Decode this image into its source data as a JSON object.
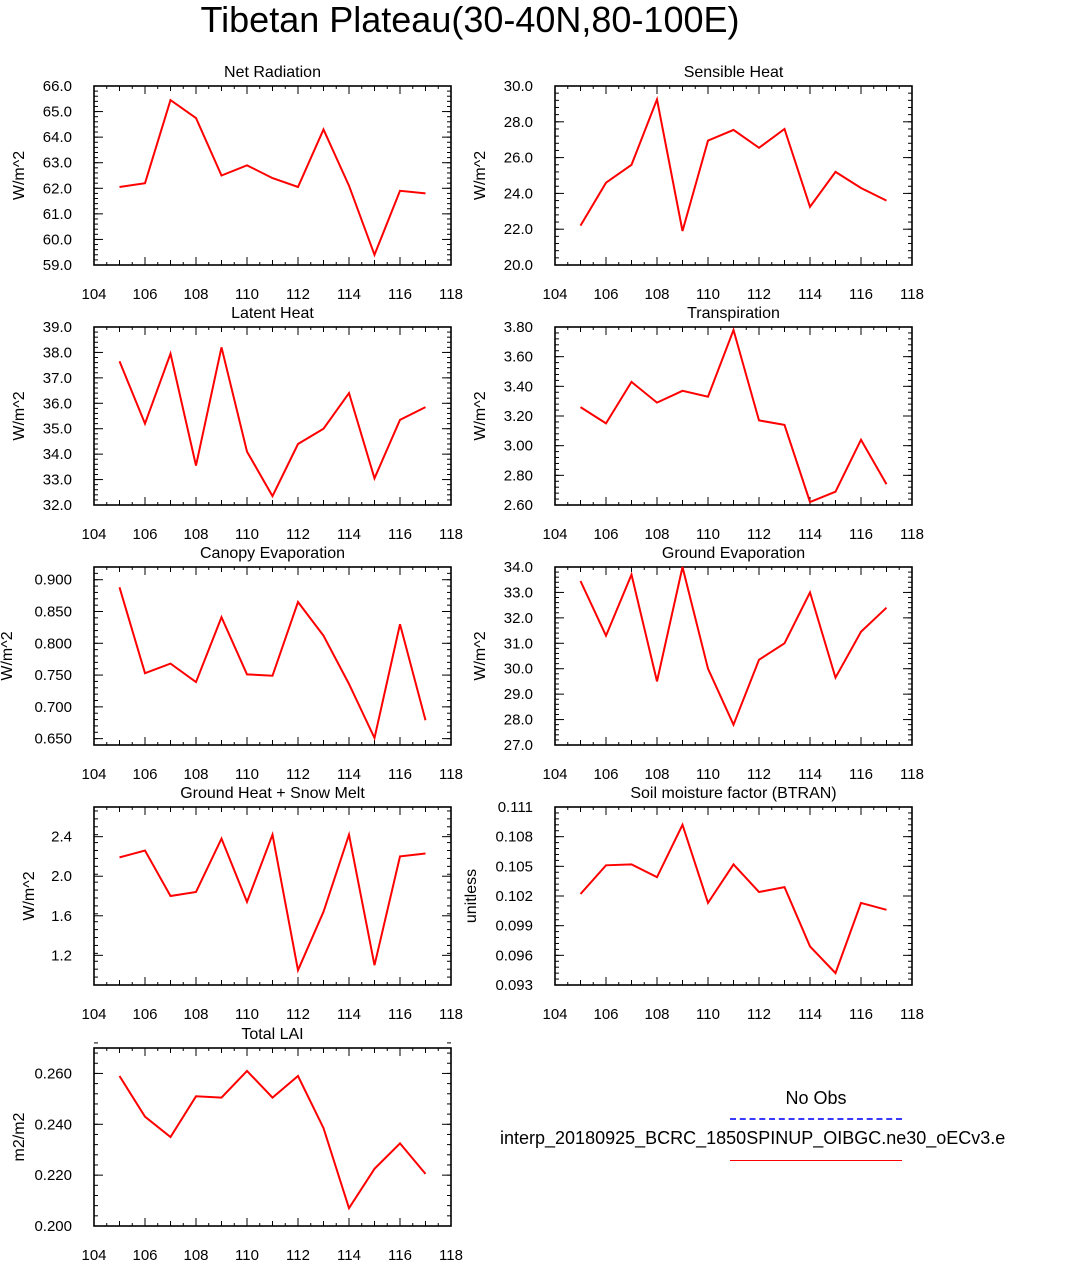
{
  "title": "Tibetan Plateau(30-40N,80-100E)",
  "line_color": "#ff0000",
  "obs_color": "#3a3aff",
  "legend": {
    "obs_label": "No Obs",
    "model_label": "interp_20180925_BCRC_1850SPINUP_OIBGC.ne30_oECv3.e"
  },
  "chart_data": [
    {
      "type": "line",
      "title": "Net Radiation",
      "xlabel": "",
      "ylabel": "W/m^2",
      "xlim": [
        104,
        118
      ],
      "ylim": [
        59.0,
        66.0
      ],
      "grid": false,
      "x_ticks": [
        104,
        106,
        108,
        110,
        112,
        114,
        116,
        118
      ],
      "y_ticks": [
        59.0,
        60.0,
        61.0,
        62.0,
        63.0,
        64.0,
        65.0,
        66.0
      ],
      "y_decimals": 1,
      "x": [
        105,
        106,
        107,
        108,
        109,
        110,
        111,
        112,
        113,
        114,
        115,
        116,
        117
      ],
      "series": [
        {
          "values": [
            62.05,
            62.2,
            65.45,
            64.75,
            62.5,
            62.9,
            62.4,
            62.05,
            64.3,
            62.1,
            59.4,
            61.9,
            61.8
          ]
        }
      ]
    },
    {
      "type": "line",
      "title": "Sensible Heat",
      "xlabel": "",
      "ylabel": "W/m^2",
      "xlim": [
        104,
        118
      ],
      "ylim": [
        20.0,
        30.0
      ],
      "grid": false,
      "x_ticks": [
        104,
        106,
        108,
        110,
        112,
        114,
        116,
        118
      ],
      "y_ticks": [
        20.0,
        22.0,
        24.0,
        26.0,
        28.0,
        30.0
      ],
      "y_decimals": 1,
      "x": [
        105,
        106,
        107,
        108,
        109,
        110,
        111,
        112,
        113,
        114,
        115,
        116,
        117
      ],
      "series": [
        {
          "values": [
            22.2,
            24.6,
            25.6,
            29.25,
            21.9,
            26.95,
            27.55,
            26.55,
            27.6,
            23.25,
            25.2,
            24.3,
            23.6
          ]
        }
      ]
    },
    {
      "type": "line",
      "title": "Latent Heat",
      "xlabel": "",
      "ylabel": "W/m^2",
      "xlim": [
        104,
        118
      ],
      "ylim": [
        32.0,
        39.0
      ],
      "grid": false,
      "x_ticks": [
        104,
        106,
        108,
        110,
        112,
        114,
        116,
        118
      ],
      "y_ticks": [
        32.0,
        33.0,
        34.0,
        35.0,
        36.0,
        37.0,
        38.0,
        39.0
      ],
      "y_decimals": 1,
      "x": [
        105,
        106,
        107,
        108,
        109,
        110,
        111,
        112,
        113,
        114,
        115,
        116,
        117
      ],
      "series": [
        {
          "values": [
            37.65,
            35.2,
            37.95,
            33.55,
            38.2,
            34.1,
            32.35,
            34.4,
            35.0,
            36.4,
            33.05,
            35.35,
            35.85
          ]
        }
      ]
    },
    {
      "type": "line",
      "title": "Transpiration",
      "xlabel": "",
      "ylabel": "W/m^2",
      "xlim": [
        104,
        118
      ],
      "ylim": [
        2.6,
        3.8
      ],
      "grid": false,
      "x_ticks": [
        104,
        106,
        108,
        110,
        112,
        114,
        116,
        118
      ],
      "y_ticks": [
        2.6,
        2.8,
        3.0,
        3.2,
        3.4,
        3.6,
        3.8
      ],
      "y_decimals": 2,
      "x": [
        105,
        106,
        107,
        108,
        109,
        110,
        111,
        112,
        113,
        114,
        115,
        116,
        117
      ],
      "series": [
        {
          "values": [
            3.26,
            3.15,
            3.43,
            3.29,
            3.37,
            3.33,
            3.78,
            3.17,
            3.14,
            2.62,
            2.69,
            3.04,
            2.74
          ]
        }
      ]
    },
    {
      "type": "line",
      "title": "Canopy Evaporation",
      "xlabel": "",
      "ylabel": "W/m^2",
      "xlim": [
        104,
        118
      ],
      "ylim": [
        0.64,
        0.92
      ],
      "grid": false,
      "x_ticks": [
        104,
        106,
        108,
        110,
        112,
        114,
        116,
        118
      ],
      "y_ticks": [
        0.65,
        0.7,
        0.75,
        0.8,
        0.85,
        0.9
      ],
      "y_decimals": 3,
      "x": [
        105,
        106,
        107,
        108,
        109,
        110,
        111,
        112,
        113,
        114,
        115,
        116,
        117
      ],
      "series": [
        {
          "values": [
            0.888,
            0.753,
            0.768,
            0.739,
            0.841,
            0.751,
            0.749,
            0.865,
            0.812,
            0.736,
            0.651,
            0.83,
            0.679
          ]
        }
      ]
    },
    {
      "type": "line",
      "title": "Ground Evaporation",
      "xlabel": "",
      "ylabel": "W/m^2",
      "xlim": [
        104,
        118
      ],
      "ylim": [
        27.0,
        34.0
      ],
      "grid": false,
      "x_ticks": [
        104,
        106,
        108,
        110,
        112,
        114,
        116,
        118
      ],
      "y_ticks": [
        27.0,
        28.0,
        29.0,
        30.0,
        31.0,
        32.0,
        33.0,
        34.0
      ],
      "y_decimals": 1,
      "x": [
        105,
        106,
        107,
        108,
        109,
        110,
        111,
        112,
        113,
        114,
        115,
        116,
        117
      ],
      "series": [
        {
          "values": [
            33.45,
            31.3,
            33.7,
            29.5,
            34.0,
            30.0,
            27.8,
            30.35,
            31.0,
            33.0,
            29.65,
            31.45,
            32.4
          ]
        }
      ]
    },
    {
      "type": "line",
      "title": "Ground Heat + Snow Melt",
      "xlabel": "",
      "ylabel": "W/m^2",
      "xlim": [
        104,
        118
      ],
      "ylim": [
        0.9,
        2.7
      ],
      "grid": false,
      "x_ticks": [
        104,
        106,
        108,
        110,
        112,
        114,
        116,
        118
      ],
      "y_ticks": [
        1.2,
        1.6,
        2.0,
        2.4
      ],
      "y_decimals": 1,
      "x": [
        105,
        106,
        107,
        108,
        109,
        110,
        111,
        112,
        113,
        114,
        115,
        116,
        117
      ],
      "series": [
        {
          "values": [
            2.19,
            2.26,
            1.8,
            1.84,
            2.38,
            1.74,
            2.42,
            1.05,
            1.64,
            2.42,
            1.1,
            2.2,
            2.23
          ]
        }
      ]
    },
    {
      "type": "line",
      "title": "Soil moisture factor (BTRAN)",
      "xlabel": "",
      "ylabel": "unitless",
      "xlim": [
        104,
        118
      ],
      "ylim": [
        0.093,
        0.111
      ],
      "grid": false,
      "x_ticks": [
        104,
        106,
        108,
        110,
        112,
        114,
        116,
        118
      ],
      "y_ticks": [
        0.093,
        0.096,
        0.099,
        0.102,
        0.105,
        0.108,
        0.111
      ],
      "y_decimals": 3,
      "x": [
        105,
        106,
        107,
        108,
        109,
        110,
        111,
        112,
        113,
        114,
        115,
        116,
        117
      ],
      "series": [
        {
          "values": [
            0.1022,
            0.1051,
            0.1052,
            0.1039,
            0.1092,
            0.1013,
            0.1052,
            0.1024,
            0.1029,
            0.0969,
            0.0942,
            0.1013,
            0.1006
          ]
        }
      ]
    },
    {
      "type": "line",
      "title": "Total LAI",
      "xlabel": "",
      "ylabel": "m2/m2",
      "xlim": [
        104,
        118
      ],
      "ylim": [
        0.2,
        0.27
      ],
      "grid": false,
      "x_ticks": [
        104,
        106,
        108,
        110,
        112,
        114,
        116,
        118
      ],
      "y_ticks": [
        0.2,
        0.22,
        0.24,
        0.26
      ],
      "y_decimals": 3,
      "x": [
        105,
        106,
        107,
        108,
        109,
        110,
        111,
        112,
        113,
        114,
        115,
        116,
        117
      ],
      "series": [
        {
          "values": [
            0.259,
            0.243,
            0.235,
            0.251,
            0.2505,
            0.261,
            0.2505,
            0.259,
            0.2385,
            0.207,
            0.2225,
            0.2325,
            0.2205
          ]
        }
      ]
    }
  ]
}
